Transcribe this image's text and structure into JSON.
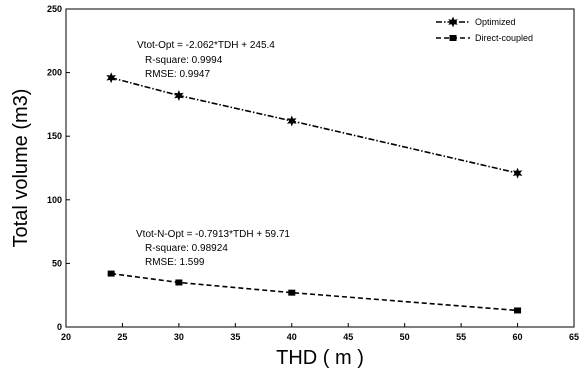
{
  "chart_data": {
    "type": "line",
    "xlabel": "THD ( m )",
    "ylabel": "Total volume (m3)",
    "xlim": [
      20,
      65
    ],
    "ylim": [
      0,
      250
    ],
    "xticks": [
      20,
      25,
      30,
      35,
      40,
      45,
      50,
      55,
      60,
      65
    ],
    "yticks": [
      0,
      50,
      100,
      150,
      200,
      250
    ],
    "grid": false,
    "legend_position": "top-right",
    "x": [
      24,
      30,
      40,
      60
    ],
    "series": [
      {
        "name": "Optimized",
        "marker": "star",
        "line_style": "dash-dot",
        "color": "#000000",
        "values": [
          196,
          182,
          162,
          121
        ],
        "annotation": [
          "Vtot-Opt = -2.062*TDH + 245.4",
          "R-square: 0.9994",
          "RMSE: 0.9947"
        ]
      },
      {
        "name": "Direct-coupled",
        "marker": "square",
        "line_style": "dashed",
        "color": "#000000",
        "values": [
          42,
          35,
          27,
          13
        ],
        "annotation": [
          "Vtot-N-Opt = -0.7913*TDH + 59.71",
          "R-square: 0.98924",
          "RMSE: 1.599"
        ]
      }
    ]
  }
}
